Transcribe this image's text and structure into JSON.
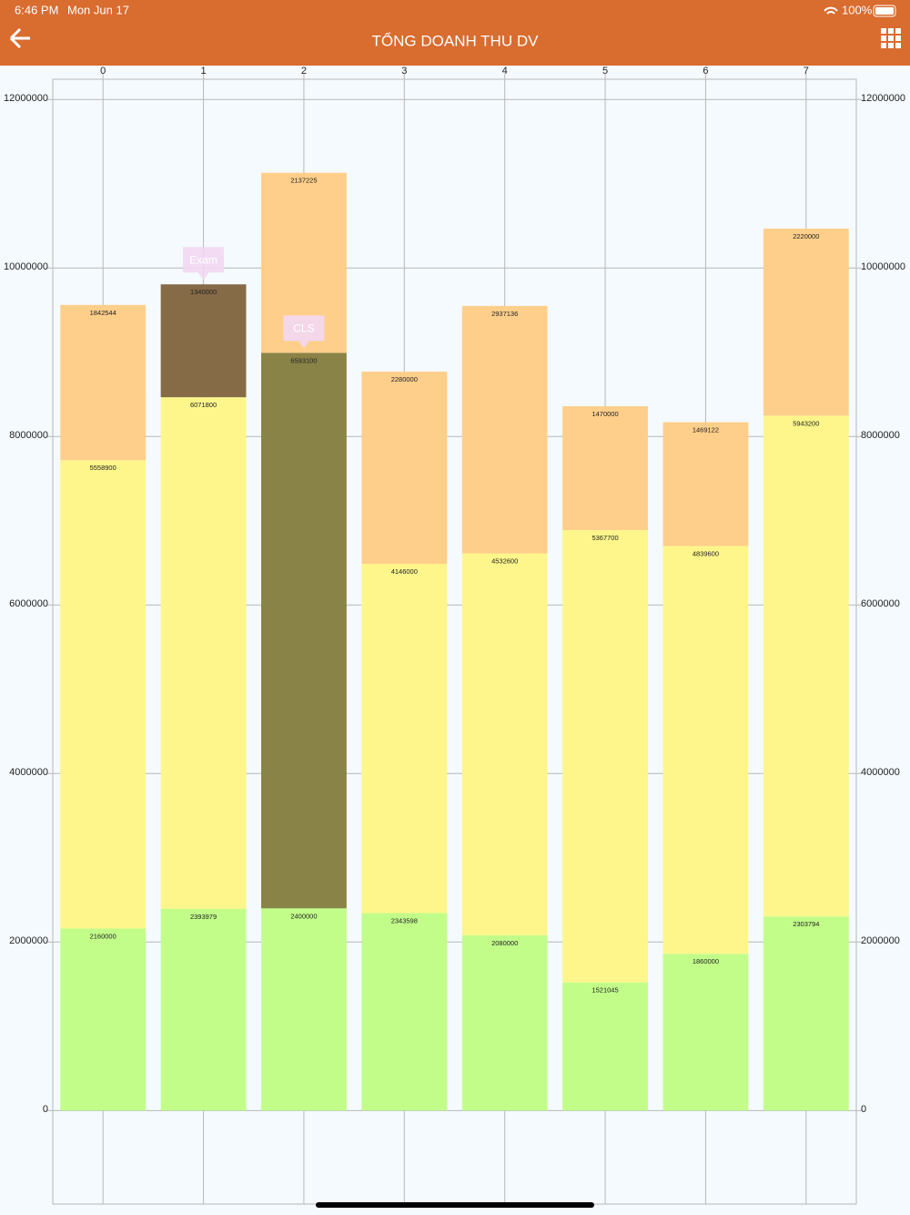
{
  "status_bar": {
    "time": "6:46 PM",
    "date": "Mon Jun 17",
    "battery": "100%"
  },
  "nav_bar": {
    "title": "TỔNG DOANH THU DV"
  },
  "chart_data": {
    "type": "bar",
    "stacked": true,
    "categories": [
      "0",
      "1",
      "2",
      "3",
      "4",
      "5",
      "6",
      "7"
    ],
    "series": [
      {
        "color": "#c2fd8a",
        "values": [
          2160000,
          2393979,
          2400000,
          2343598,
          2080000,
          1521045,
          1860000,
          2303794
        ]
      },
      {
        "color": "#fef68a",
        "values": [
          5558900,
          6071800,
          6593100,
          4146000,
          4532600,
          5367700,
          4839600,
          5943200
        ],
        "point_colors": [
          null,
          null,
          "#8a8347",
          null,
          null,
          null,
          null,
          null
        ],
        "tooltips": [
          null,
          null,
          "CLS",
          null,
          null,
          null,
          null,
          null
        ]
      },
      {
        "color": "#fecf8a",
        "values": [
          1842544,
          1340000,
          2137225,
          2280000,
          2937136,
          1470000,
          1469122,
          2220000
        ],
        "point_colors": [
          null,
          "#866b47",
          null,
          null,
          null,
          null,
          null,
          null
        ],
        "tooltips": [
          null,
          "Exam",
          null,
          null,
          null,
          null,
          null,
          null
        ]
      }
    ],
    "ylim": [
      -1110000,
      12240000
    ],
    "yticks": [
      0,
      2000000,
      4000000,
      6000000,
      8000000,
      10000000,
      12000000
    ],
    "grid": true,
    "right_axis": true
  }
}
